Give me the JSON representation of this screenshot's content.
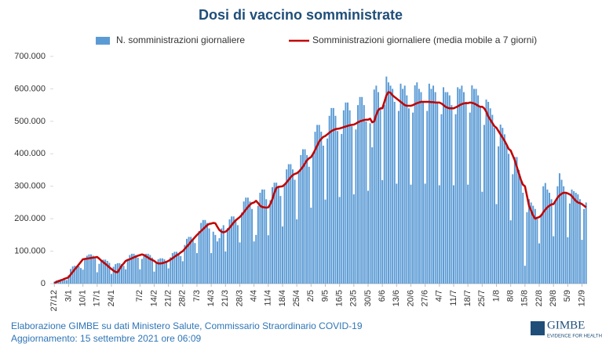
{
  "chart_data": {
    "type": "bar",
    "title": "Dosi di vaccino somministrate",
    "categories": [
      "27/12",
      null,
      null,
      null,
      null,
      null,
      null,
      "3/1",
      null,
      null,
      null,
      null,
      null,
      null,
      "10/1",
      null,
      null,
      null,
      null,
      null,
      null,
      "17/1",
      null,
      null,
      null,
      null,
      null,
      null,
      "24/1",
      null,
      null,
      null,
      null,
      null,
      null,
      null,
      null,
      null,
      null,
      null,
      null,
      null,
      "7/2",
      null,
      null,
      null,
      null,
      null,
      null,
      "14/2",
      null,
      null,
      null,
      null,
      null,
      null,
      "21/2",
      null,
      null,
      null,
      null,
      null,
      null,
      "28/2",
      null,
      null,
      null,
      null,
      null,
      null,
      "7/3",
      null,
      null,
      null,
      null,
      null,
      null,
      "14/3",
      null,
      null,
      null,
      null,
      null,
      null,
      "21/3",
      null,
      null,
      null,
      null,
      null,
      null,
      "28/3",
      null,
      null,
      null,
      null,
      null,
      null,
      "4/4",
      null,
      null,
      null,
      null,
      null,
      null,
      "11/4",
      null,
      null,
      null,
      null,
      null,
      null,
      "18/4",
      null,
      null,
      null,
      null,
      null,
      null,
      "25/4",
      null,
      null,
      null,
      null,
      null,
      null,
      "2/5",
      null,
      null,
      null,
      null,
      null,
      null,
      "9/5",
      null,
      null,
      null,
      null,
      null,
      null,
      "16/5",
      null,
      null,
      null,
      null,
      null,
      null,
      "23/5",
      null,
      null,
      null,
      null,
      null,
      null,
      "30/5",
      null,
      null,
      null,
      null,
      null,
      null,
      "6/6",
      null,
      null,
      null,
      null,
      null,
      null,
      "13/6",
      null,
      null,
      null,
      null,
      null,
      null,
      "20/6",
      null,
      null,
      null,
      null,
      null,
      null,
      "27/6",
      null,
      null,
      null,
      null,
      null,
      null,
      "4/7",
      null,
      null,
      null,
      null,
      null,
      null,
      "11/7",
      null,
      null,
      null,
      null,
      null,
      null,
      "18/7",
      null,
      null,
      null,
      null,
      null,
      null,
      "25/7",
      null,
      null,
      null,
      null,
      null,
      null,
      "1/8",
      null,
      null,
      null,
      null,
      null,
      null,
      "8/8",
      null,
      null,
      null,
      null,
      null,
      null,
      "15/8",
      null,
      null,
      null,
      null,
      null,
      null,
      "22/8",
      null,
      null,
      null,
      null,
      null,
      null,
      "29/8",
      null,
      null,
      null,
      null,
      null,
      null,
      "5/9",
      null,
      null,
      null,
      null,
      null,
      null,
      "12/9",
      null,
      null
    ],
    "series": [
      {
        "name": "N. somministrazioni giornaliere",
        "type": "bar",
        "color": "#5b9bd5",
        "values": [
          6000,
          10000,
          12000,
          13000,
          13000,
          12000,
          11000,
          26000,
          45000,
          53000,
          55000,
          55000,
          53000,
          48000,
          43000,
          74000,
          86000,
          90000,
          90000,
          86000,
          78000,
          35000,
          61000,
          70000,
          74000,
          74000,
          70000,
          64000,
          30000,
          52000,
          60000,
          63000,
          63000,
          60000,
          55000,
          44000,
          76000,
          88000,
          92000,
          92000,
          88000,
          80000,
          44000,
          76000,
          88000,
          92000,
          92000,
          88000,
          80000,
          37000,
          65000,
          75000,
          78000,
          78000,
          75000,
          68000,
          47000,
          81000,
          94000,
          98000,
          98000,
          94000,
          85000,
          69000,
          119000,
          138000,
          144000,
          144000,
          138000,
          125000,
          94000,
          162000,
          187000,
          196000,
          196000,
          187000,
          170000,
          94000,
          160000,
          150000,
          130000,
          140000,
          170000,
          180000,
          99000,
          171000,
          198000,
          207000,
          207000,
          198000,
          180000,
          127000,
          219000,
          253000,
          265000,
          265000,
          253000,
          230000,
          130000,
          150000,
          240000,
          280000,
          290000,
          290000,
          260000,
          149000,
          257000,
          297000,
          311000,
          311000,
          297000,
          270000,
          176000,
          304000,
          352000,
          368000,
          368000,
          352000,
          320000,
          198000,
          342000,
          396000,
          414000,
          414000,
          396000,
          360000,
          234000,
          404000,
          468000,
          489000,
          489000,
          468000,
          425000,
          259000,
          447000,
          517000,
          541000,
          541000,
          517000,
          470000,
          267000,
          461000,
          534000,
          558000,
          558000,
          534000,
          485000,
          275000,
          475000,
          550000,
          575000,
          575000,
          550000,
          500000,
          286000,
          494000,
          420000,
          598000,
          610000,
          590000,
          540000,
          319000,
          551000,
          638000,
          620000,
          610000,
          600000,
          560000,
          308000,
          532000,
          616000,
          600000,
          610000,
          580000,
          540000,
          305000,
          527000,
          611000,
          620000,
          600000,
          590000,
          560000,
          308000,
          532000,
          616000,
          600000,
          610000,
          590000,
          560000,
          303000,
          522000,
          605000,
          590000,
          590000,
          580000,
          550000,
          303000,
          522000,
          605000,
          600000,
          610000,
          590000,
          560000,
          305000,
          527000,
          611000,
          600000,
          600000,
          580000,
          545000,
          283000,
          489000,
          567000,
          560000,
          540000,
          520000,
          480000,
          245000,
          423000,
          490000,
          480000,
          460000,
          430000,
          400000,
          195000,
          337000,
          390000,
          390000,
          350000,
          320000,
          280000,
          55000,
          220000,
          260000,
          250000,
          240000,
          230000,
          200000,
          124000,
          214000,
          300000,
          310000,
          290000,
          280000,
          260000,
          146000,
          252000,
          300000,
          340000,
          320000,
          300000,
          280000,
          143000,
          247000,
          290000,
          285000,
          280000,
          275000,
          260000,
          135000,
          230000,
          250000
        ]
      },
      {
        "name": "Somministrazioni giornaliere (media mobile a 7 giorni)",
        "type": "line",
        "color": "#c00000",
        "values": [
          2000,
          5000,
          7000,
          10000,
          12000,
          15000,
          17000,
          20000,
          28000,
          36000,
          44000,
          51000,
          59000,
          67000,
          75000,
          76000,
          77000,
          78000,
          79000,
          80000,
          81000,
          82000,
          77000,
          71000,
          66000,
          61000,
          56000,
          50000,
          45000,
          40000,
          36000,
          35000,
          45000,
          55000,
          62000,
          70000,
          73000,
          75000,
          78000,
          81000,
          83000,
          86000,
          88000,
          90000,
          88000,
          84000,
          80000,
          76000,
          73000,
          70000,
          65000,
          62000,
          62000,
          63000,
          65000,
          67000,
          70000,
          74000,
          78000,
          83000,
          87000,
          91000,
          96000,
          100000,
          107000,
          114000,
          121000,
          129000,
          136000,
          143000,
          150000,
          156000,
          162000,
          168000,
          174000,
          180000,
          184000,
          185000,
          187000,
          186000,
          175000,
          165000,
          160000,
          158000,
          160000,
          165000,
          172000,
          180000,
          188000,
          195000,
          200000,
          205000,
          212000,
          220000,
          228000,
          236000,
          243000,
          248000,
          250000,
          255000,
          248000,
          240000,
          236000,
          235000,
          234000,
          235000,
          245000,
          260000,
          280000,
          295000,
          298000,
          299000,
          300000,
          305000,
          312000,
          320000,
          328000,
          334000,
          338000,
          340000,
          345000,
          352000,
          360000,
          370000,
          380000,
          386000,
          390000,
          400000,
          412000,
          425000,
          438000,
          446000,
          452000,
          455000,
          460000,
          465000,
          470000,
          473000,
          476000,
          477000,
          478000,
          480000,
          482000,
          484000,
          486000,
          488000,
          489000,
          490000,
          493000,
          497000,
          500000,
          502000,
          504000,
          505000,
          505000,
          508000,
          497000,
          500000,
          520000,
          535000,
          540000,
          540000,
          560000,
          580000,
          590000,
          588000,
          580000,
          575000,
          570000,
          565000,
          560000,
          555000,
          550000,
          548000,
          548000,
          548000,
          550000,
          553000,
          556000,
          558000,
          560000,
          560000,
          560000,
          560000,
          560000,
          559000,
          559000,
          558000,
          558000,
          558000,
          555000,
          550000,
          545000,
          542000,
          540000,
          540000,
          540000,
          543000,
          546000,
          550000,
          553000,
          555000,
          556000,
          556000,
          558000,
          557000,
          555000,
          552000,
          548000,
          545000,
          545000,
          540000,
          530000,
          515000,
          505000,
          495000,
          485000,
          480000,
          470000,
          460000,
          450000,
          440000,
          428000,
          415000,
          410000,
          395000,
          380000,
          360000,
          340000,
          320000,
          305000,
          300000,
          270000,
          240000,
          225000,
          210000,
          200000,
          203000,
          205000,
          210000,
          220000,
          228000,
          235000,
          240000,
          244000,
          245000,
          255000,
          265000,
          272000,
          277000,
          280000,
          280000,
          278000,
          275000,
          270000,
          262000,
          255000,
          250000,
          248000,
          245000,
          240000,
          235000
        ]
      }
    ],
    "ylim": [
      0,
      700000
    ],
    "yticks": [
      0,
      {
        "value": 100000,
        "label": "100.000"
      },
      {
        "value": 200000,
        "label": "200.000"
      },
      {
        "value": 300000,
        "label": "300.000"
      },
      {
        "value": 400000,
        "label": "400.000"
      },
      {
        "value": 500000,
        "label": "500.000"
      },
      {
        "value": 600000,
        "label": "600.000"
      },
      {
        "value": 700000,
        "label": "700.000"
      }
    ],
    "grid": false,
    "legend": "top"
  },
  "footer": {
    "source": "Elaborazione GIMBE su dati Ministero Salute, Commissario Straordinario COVID-19",
    "updated": "Aggiornamento: 15 settembre 2021 ore 06:09"
  },
  "logo": {
    "name": "GIMBE",
    "tagline": "EVIDENCE FOR HEALTH"
  }
}
